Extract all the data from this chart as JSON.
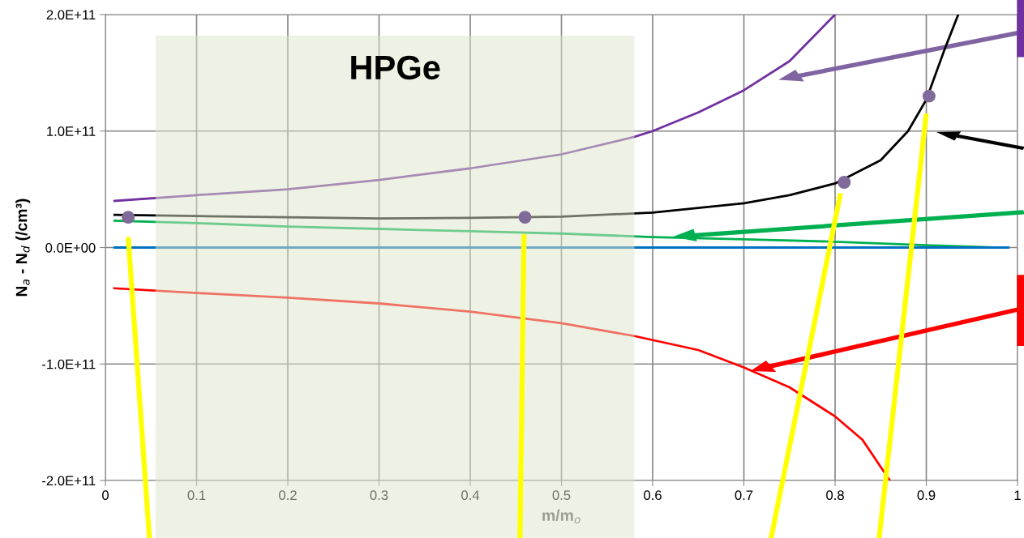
{
  "chart_data": {
    "type": "line",
    "xlabel": "m/m$_{o}$",
    "ylabel": "N$_{a}$ - N$_{d}$ (/cm³)",
    "xlim": [
      0,
      1
    ],
    "xticks": [
      0,
      0.1,
      0.2,
      0.3,
      0.4,
      0.5,
      0.6,
      0.7,
      0.8,
      0.9,
      1
    ],
    "ylim": [
      -200000000000.0,
      200000000000.0
    ],
    "yticks": [
      {
        "value": -200000000000.0,
        "label": "-2.0E+11"
      },
      {
        "value": -100000000000.0,
        "label": "-1.0E+11"
      },
      {
        "value": 0,
        "label": "0.0E+00"
      },
      {
        "value": 100000000000.0,
        "label": "1.0E+11"
      },
      {
        "value": 200000000000.0,
        "label": "2.0E+11"
      }
    ],
    "grid": true,
    "legend": false,
    "bands": [
      {
        "axis": "x",
        "from": 0.055,
        "to": 0.58,
        "label": "HPGe",
        "color": "#dde6c9"
      }
    ],
    "series": [
      {
        "color": "#7030a0",
        "x": [
          0.01,
          0.1,
          0.2,
          0.3,
          0.4,
          0.5,
          0.58,
          0.6,
          0.65,
          0.7,
          0.75,
          0.8
        ],
        "values": [
          40000000000.0,
          45000000000.0,
          50000000000.0,
          58000000000.0,
          68000000000.0,
          80000000000.0,
          95000000000.0,
          100000000000.0,
          116000000000.0,
          135000000000.0,
          160000000000.0,
          200000000000.0
        ]
      },
      {
        "color": "#000000",
        "x": [
          0.01,
          0.1,
          0.2,
          0.3,
          0.4,
          0.5,
          0.6,
          0.7,
          0.75,
          0.8,
          0.85,
          0.88,
          0.9,
          0.92,
          0.935
        ],
        "values": [
          28000000000.0,
          27000000000.0,
          26000000000.0,
          25000000000.0,
          25500000000.0,
          26500000000.0,
          30000000000.0,
          38000000000.0,
          45000000000.0,
          55000000000.0,
          75000000000.0,
          100000000000.0,
          127000000000.0,
          170000000000.0,
          200000000000.0
        ]
      },
      {
        "color": "#00b050",
        "x": [
          0.01,
          0.1,
          0.2,
          0.3,
          0.4,
          0.5,
          0.6,
          0.7,
          0.8,
          0.9,
          0.98
        ],
        "values": [
          23000000000.0,
          21000000000.0,
          18000000000.0,
          16000000000.0,
          14000000000.0,
          12000000000.0,
          9000000000.0,
          7000000000.0,
          5000000000.0,
          2000000000.0,
          0
        ]
      },
      {
        "color": "#0070c0",
        "x": [
          0.01,
          0.99
        ],
        "values": [
          0,
          0
        ]
      },
      {
        "color": "#ff0000",
        "x": [
          0.01,
          0.1,
          0.2,
          0.3,
          0.4,
          0.5,
          0.58,
          0.65,
          0.7,
          0.75,
          0.8,
          0.83,
          0.86
        ],
        "values": [
          -35000000000.0,
          -39000000000.0,
          -43000000000.0,
          -48000000000.0,
          -55000000000.0,
          -65000000000.0,
          -76000000000.0,
          -88000000000.0,
          -103000000000.0,
          -120000000000.0,
          -145000000000.0,
          -165000000000.0,
          -200000000000.0
        ]
      },
      {
        "type": "scatter",
        "color": "#7f6a9a",
        "marker": "circle",
        "x": [
          0.025,
          0.46,
          0.81,
          0.903
        ],
        "values": [
          26000000000.0,
          26000000000.0,
          56000000000.0,
          130000000000.0
        ]
      }
    ]
  }
}
